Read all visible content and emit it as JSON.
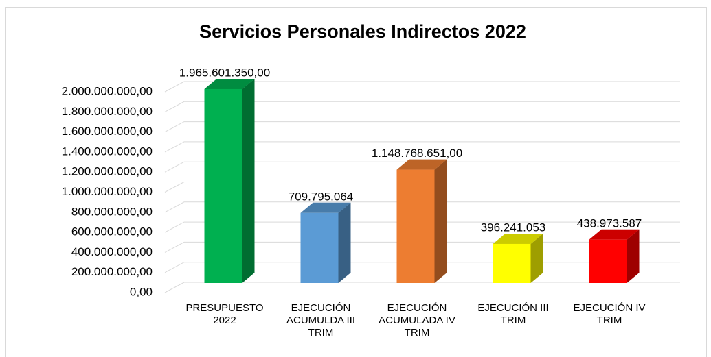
{
  "chart_data": {
    "type": "bar3d",
    "title": "Servicios Personales Indirectos 2022",
    "categories": [
      "PRESUPUESTO 2022",
      "EJECUCIÓN ACUMULDA III TRIM",
      "EJECUCIÓN ACUMULADA IV TRIM",
      "EJECUCIÓN III TRIM",
      "EJECUCIÓN IV TRIM"
    ],
    "values": [
      1965601350,
      709795064,
      1148768651,
      396241053,
      438973587
    ],
    "value_labels": [
      "1.965.601.350,00",
      "709.795.064",
      "1.148.768.651,00",
      "396.241.053",
      "438.973.587"
    ],
    "colors": [
      "#00b050",
      "#5b9bd5",
      "#ed7d31",
      "#ffff00",
      "#ff0000"
    ],
    "ylim": [
      0,
      2000000000
    ],
    "yticks": [
      {
        "value": 0,
        "label": "0,00"
      },
      {
        "value": 200000000,
        "label": "200.000.000,00"
      },
      {
        "value": 400000000,
        "label": "400.000.000,00"
      },
      {
        "value": 600000000,
        "label": "600.000.000,00"
      },
      {
        "value": 800000000,
        "label": "800.000.000,00"
      },
      {
        "value": 1000000000,
        "label": "1.000.000.000,00"
      },
      {
        "value": 1200000000,
        "label": "1.200.000.000,00"
      },
      {
        "value": 1400000000,
        "label": "1.400.000.000,00"
      },
      {
        "value": 1600000000,
        "label": "1.600.000.000,00"
      },
      {
        "value": 1800000000,
        "label": "1.800.000.000,00"
      },
      {
        "value": 2000000000,
        "label": "2.000.000.000,00"
      }
    ],
    "grid": true
  }
}
